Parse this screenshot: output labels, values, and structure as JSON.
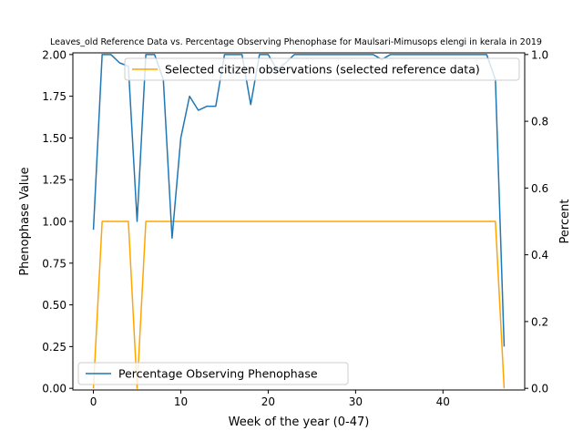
{
  "chart_data": {
    "type": "line",
    "title": "Leaves_old Reference Data vs. Percentage Observing Phenophase for Maulsari-Mimusops elengi in kerala in 2019",
    "xlabel": "Week of the year (0-47)",
    "ylabel_left": "Phenophase Value",
    "ylabel_right": "Percent",
    "xlim": [
      -2.35,
      49.35
    ],
    "ylim_left": [
      -0.01,
      2.01
    ],
    "ylim_right": [
      -0.005,
      1.005
    ],
    "x_ticks": [
      0,
      10,
      20,
      30,
      40
    ],
    "y_ticks_left": [
      0.0,
      0.25,
      0.5,
      0.75,
      1.0,
      1.25,
      1.5,
      1.75,
      2.0
    ],
    "y_tick_labels_left": [
      "0.00",
      "0.25",
      "0.50",
      "0.75",
      "1.00",
      "1.25",
      "1.50",
      "1.75",
      "2.00"
    ],
    "y_ticks_right": [
      0.0,
      0.2,
      0.4,
      0.6,
      0.8,
      1.0
    ],
    "y_tick_labels_right": [
      "0.0",
      "0.2",
      "0.4",
      "0.6",
      "0.8",
      "1.0"
    ],
    "grid": false,
    "series": [
      {
        "name": "Selected citizen observations (selected reference data)",
        "axis": "left",
        "color": "#ffa500",
        "legend_position": "upper right",
        "x": [
          0,
          1,
          2,
          3,
          4,
          5,
          6,
          7,
          8,
          9,
          10,
          11,
          12,
          13,
          14,
          15,
          16,
          17,
          18,
          19,
          20,
          21,
          22,
          23,
          24,
          25,
          26,
          27,
          28,
          29,
          30,
          31,
          32,
          33,
          34,
          35,
          36,
          37,
          38,
          39,
          40,
          41,
          42,
          43,
          44,
          45,
          46,
          47
        ],
        "values": [
          0,
          1,
          1,
          1,
          1,
          0,
          1,
          1,
          1,
          1,
          1,
          1,
          1,
          1,
          1,
          1,
          1,
          1,
          1,
          1,
          1,
          1,
          1,
          1,
          1,
          1,
          1,
          1,
          1,
          1,
          1,
          1,
          1,
          1,
          1,
          1,
          1,
          1,
          1,
          1,
          1,
          1,
          1,
          1,
          1,
          1,
          1,
          0
        ]
      },
      {
        "name": "Percentage Observing Phenophase",
        "axis": "right",
        "color": "#1f77b4",
        "legend_position": "lower left",
        "x": [
          0,
          1,
          2,
          3,
          4,
          5,
          6,
          7,
          8,
          9,
          10,
          11,
          12,
          13,
          14,
          15,
          16,
          17,
          18,
          19,
          20,
          21,
          22,
          23,
          24,
          25,
          26,
          27,
          28,
          29,
          30,
          31,
          32,
          33,
          34,
          35,
          36,
          37,
          38,
          39,
          40,
          41,
          42,
          43,
          44,
          45,
          46,
          47
        ],
        "values": [
          0.475,
          1.0,
          1.0,
          0.975,
          0.965,
          0.5,
          1.0,
          1.0,
          0.925,
          0.45,
          0.75,
          0.875,
          0.833,
          0.845,
          0.845,
          1.0,
          1.0,
          1.0,
          0.85,
          1.0,
          1.0,
          0.955,
          0.975,
          1.0,
          1.0,
          1.0,
          1.0,
          1.0,
          1.0,
          1.0,
          1.0,
          1.0,
          1.0,
          0.985,
          1.0,
          1.0,
          1.0,
          1.0,
          1.0,
          1.0,
          1.0,
          1.0,
          1.0,
          1.0,
          1.0,
          1.0,
          0.925,
          0.125
        ]
      }
    ]
  }
}
